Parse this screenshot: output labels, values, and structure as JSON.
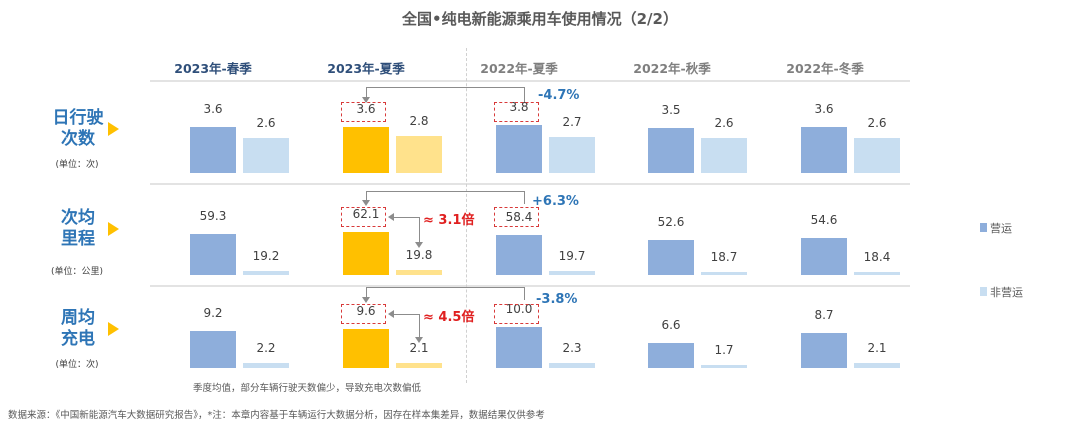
{
  "title": "全国•纯电新能源乘用车使用情况（2/2）",
  "colors": {
    "operating": "#8eaedb",
    "non_operating": "#c8def1",
    "highlight_operating": "#ffc000",
    "highlight_non_operating": "#ffe28c",
    "row_label": "#2e75b6",
    "annotation_red": "#e02020"
  },
  "legend": [
    {
      "label": "营运"
    },
    {
      "label": "非营运"
    }
  ],
  "rows": [
    {
      "label_1": "日行驶",
      "label_2": "次数",
      "unit": "(单位：次)",
      "pct": "-4.7%",
      "multiple": ""
    },
    {
      "label_1": "次均",
      "label_2": "里程",
      "unit": "(单位：公里)",
      "pct": "+6.3%",
      "multiple": "≈  3.1倍"
    },
    {
      "label_1": "周均",
      "label_2": "充电",
      "unit": "(单位：次)",
      "pct": "-3.8%",
      "multiple": "≈  4.5倍"
    }
  ],
  "note": "季度均值，部分车辆行驶天数偏少，导致充电次数偏低",
  "source": "数据来源：《中国新能源汽车大数据研究报告》，*注：本章内容基于车辆运行大数据分析，因存在样本集差异，数据结果仅供参考",
  "chart_data": {
    "type": "bar",
    "categories": [
      "2023年-春季",
      "2023年-夏季",
      "2022年-夏季",
      "2022年-秋季",
      "2022年-冬季"
    ],
    "highlight_category": "2023年-夏季",
    "panels": [
      {
        "metric": "日行驶次数",
        "unit": "次",
        "series": [
          {
            "name": "营运",
            "values": [
              3.6,
              3.6,
              3.8,
              3.5,
              3.6
            ]
          },
          {
            "name": "非营运",
            "values": [
              2.6,
              2.8,
              2.7,
              2.6,
              2.6
            ]
          }
        ]
      },
      {
        "metric": "次均里程",
        "unit": "公里",
        "series": [
          {
            "name": "营运",
            "values": [
              59.3,
              62.1,
              58.4,
              52.6,
              54.6
            ]
          },
          {
            "name": "非营运",
            "values": [
              19.2,
              19.8,
              19.7,
              18.7,
              18.4
            ]
          }
        ]
      },
      {
        "metric": "周均充电",
        "unit": "次",
        "series": [
          {
            "name": "营运",
            "values": [
              9.2,
              9.6,
              10.0,
              6.6,
              8.7
            ]
          },
          {
            "name": "非营运",
            "values": [
              2.2,
              2.1,
              2.3,
              1.7,
              2.1
            ]
          }
        ]
      }
    ],
    "legend_position": "right"
  }
}
